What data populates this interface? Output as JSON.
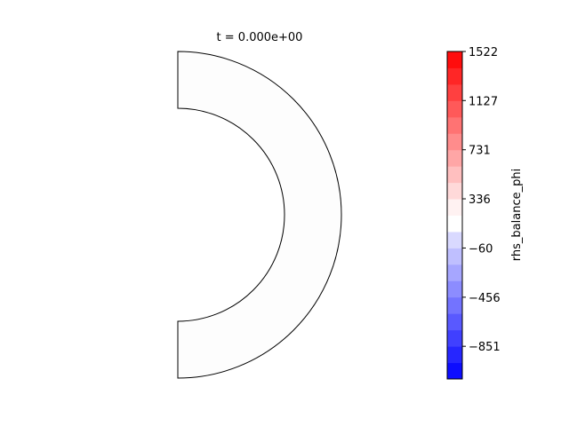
{
  "chart_data": {
    "type": "heatmap",
    "title": "t = 0.000e+00",
    "geometry": "half-annulus (polar domain, right half)",
    "field_values": "uniform (near 0, rendered white)",
    "colorbar": {
      "label": "rhs_balance_phi",
      "colormap": "bwr",
      "vmin": -1114,
      "vmax": 1522,
      "levels": 20,
      "ticks": [
        1522,
        1127,
        731,
        336,
        -60,
        -456,
        -851
      ],
      "tick_labels": [
        "1522",
        "1127",
        "731",
        "336",
        "−60",
        "−456",
        "−851"
      ]
    }
  }
}
